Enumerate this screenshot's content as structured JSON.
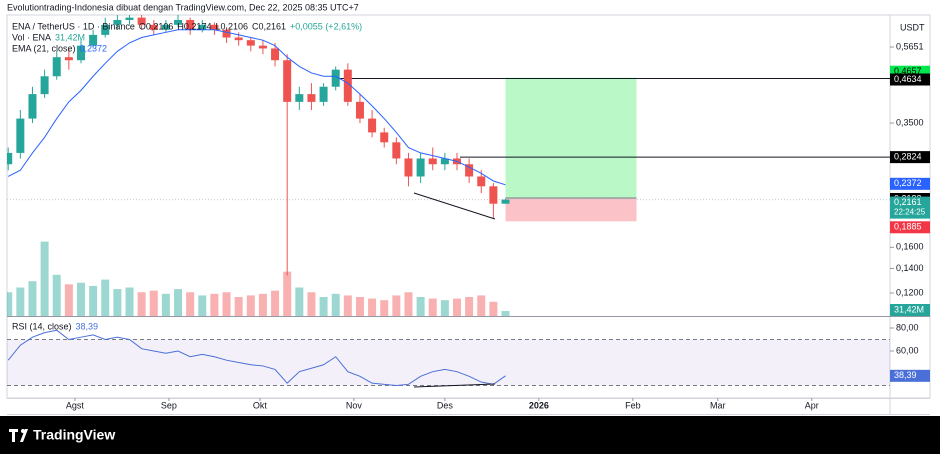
{
  "header": "Evolutiontrading-Indonesia dibuat dengan TradingView.com, Dec 22, 2025 08:35 UTC+7",
  "chart_data": {
    "type": "candlestick",
    "symbol": "ENA / TetherUS · 1D · Binance",
    "ohlc_labels": [
      "O0,2106",
      "H0,2174",
      "L0,2106",
      "C0,2161"
    ],
    "change_label": "+0,0055 (+2,61%)",
    "currency": "USDT",
    "log_scale": true,
    "categories": [
      null,
      null,
      null,
      null,
      null,
      null,
      null,
      null,
      null,
      null,
      null,
      null,
      null,
      null,
      null,
      null,
      null,
      null,
      null,
      null,
      null,
      null,
      null,
      null,
      null,
      null,
      null,
      null,
      null,
      null,
      null,
      null,
      null,
      null,
      null,
      null,
      null,
      null,
      null,
      null,
      null,
      null
    ],
    "open": [
      0.27,
      0.29,
      0.36,
      0.42,
      0.47,
      0.53,
      0.52,
      0.57,
      0.61,
      0.65,
      0.67,
      0.68,
      0.65,
      0.63,
      0.65,
      0.67,
      0.63,
      0.65,
      0.63,
      0.6,
      0.59,
      0.57,
      0.56,
      0.52,
      0.4,
      0.42,
      0.4,
      0.44,
      0.49,
      0.4,
      0.36,
      0.33,
      0.31,
      0.28,
      0.25,
      0.28,
      0.27,
      0.28,
      0.27,
      0.25,
      0.235,
      0.2106
    ],
    "high": [
      0.3,
      0.38,
      0.44,
      0.49,
      0.55,
      0.56,
      0.59,
      0.63,
      0.68,
      0.7,
      0.72,
      0.7,
      0.67,
      0.67,
      0.7,
      0.68,
      0.67,
      0.66,
      0.64,
      0.62,
      0.6,
      0.59,
      0.58,
      0.54,
      0.44,
      0.45,
      0.45,
      0.5,
      0.51,
      0.42,
      0.38,
      0.34,
      0.32,
      0.29,
      0.29,
      0.3,
      0.29,
      0.29,
      0.28,
      0.26,
      0.24,
      0.2174
    ],
    "low": [
      0.26,
      0.28,
      0.35,
      0.41,
      0.46,
      0.49,
      0.51,
      0.56,
      0.6,
      0.63,
      0.65,
      0.63,
      0.61,
      0.62,
      0.64,
      0.61,
      0.62,
      0.61,
      0.58,
      0.57,
      0.55,
      0.54,
      0.5,
      0.134,
      0.38,
      0.38,
      0.39,
      0.43,
      0.39,
      0.35,
      0.32,
      0.3,
      0.27,
      0.235,
      0.24,
      0.26,
      0.26,
      0.26,
      0.24,
      0.225,
      0.192,
      0.2106
    ],
    "close": [
      0.29,
      0.36,
      0.42,
      0.47,
      0.53,
      0.52,
      0.57,
      0.61,
      0.65,
      0.67,
      0.68,
      0.65,
      0.63,
      0.65,
      0.67,
      0.63,
      0.65,
      0.63,
      0.6,
      0.59,
      0.57,
      0.56,
      0.52,
      0.4,
      0.42,
      0.4,
      0.44,
      0.49,
      0.4,
      0.36,
      0.33,
      0.31,
      0.28,
      0.25,
      0.28,
      0.27,
      0.28,
      0.27,
      0.25,
      0.235,
      0.2106,
      0.2161
    ],
    "last_label": "0,2161",
    "countdown": "22:24:25",
    "colors": {
      "up": "#26a69a",
      "down": "#ef5350"
    },
    "ylim": [
      0.1038,
      0.6914
    ],
    "yticks": [
      {
        "value": 0.5651,
        "label": "0,5651"
      },
      {
        "value": 0.35,
        "label": "0,3500"
      },
      {
        "value": 0.16,
        "label": "0,1600"
      },
      {
        "value": 0.14,
        "label": "0,1400"
      },
      {
        "value": 0.12,
        "label": "0,1200"
      }
    ],
    "xlim": [
      -0.1,
      72.7
    ],
    "xticks": [
      {
        "value": 5.5,
        "label": "Agst"
      },
      {
        "value": 13.25,
        "label": "Sep"
      },
      {
        "value": 20.75,
        "label": "Okt"
      },
      {
        "value": 28.5,
        "label": "Nov"
      },
      {
        "value": 36,
        "label": "Des"
      },
      {
        "value": 43.75,
        "label": "2026"
      },
      {
        "value": 51.5,
        "label": "Feb"
      },
      {
        "value": 58.5,
        "label": "Mar"
      },
      {
        "value": 66.25,
        "label": "Apr"
      }
    ],
    "volume": {
      "name": "Vol · ENA",
      "ylim": [
        0,
        600
      ],
      "values": [
        150,
        180,
        220,
        470,
        260,
        200,
        210,
        190,
        230,
        170,
        180,
        150,
        160,
        140,
        170,
        150,
        130,
        140,
        150,
        120,
        130,
        140,
        160,
        280,
        180,
        150,
        120,
        140,
        130,
        120,
        110,
        100,
        130,
        150,
        120,
        110,
        100,
        110,
        120,
        130,
        90,
        31.42
      ],
      "last_label": "31,42M"
    },
    "ema": {
      "name": "EMA (21, close)",
      "color": "#2962ff",
      "values": [
        0.25,
        0.26,
        0.29,
        0.32,
        0.36,
        0.4,
        0.43,
        0.47,
        0.51,
        0.55,
        0.58,
        0.6,
        0.61,
        0.62,
        0.63,
        0.63,
        0.63,
        0.63,
        0.62,
        0.61,
        0.6,
        0.59,
        0.57,
        0.53,
        0.5,
        0.48,
        0.47,
        0.47,
        0.45,
        0.42,
        0.39,
        0.36,
        0.33,
        0.3,
        0.29,
        0.285,
        0.28,
        0.275,
        0.265,
        0.255,
        0.243,
        0.2372
      ],
      "last_label": "0,2372"
    },
    "levels": [
      {
        "value": 0.4634,
        "label": "0,4634"
      },
      {
        "value": 0.2824,
        "label": "0,2824"
      }
    ],
    "position": {
      "target": {
        "value": 0.4657,
        "label": "0,4657"
      },
      "entry": {
        "value": 0.2183,
        "label": "0,2183"
      },
      "stop": {
        "value": 0.1885,
        "label": "0,1885"
      }
    }
  },
  "rsi": {
    "type": "line",
    "name": "RSI (14, close)",
    "color": "#4a6fd8",
    "values": [
      52,
      65,
      72,
      76,
      78,
      70,
      72,
      74,
      70,
      72,
      70,
      62,
      60,
      58,
      60,
      55,
      57,
      55,
      52,
      50,
      48,
      47,
      44,
      32,
      42,
      45,
      48,
      55,
      42,
      38,
      32,
      31,
      30,
      31,
      38,
      42,
      44,
      42,
      38,
      33,
      31,
      38.39
    ],
    "last_label": "38,39",
    "ylim": [
      19.1,
      88.7
    ],
    "yticks": [
      {
        "value": 80,
        "label": "80,00"
      },
      {
        "value": 60,
        "label": "60,00"
      }
    ],
    "bands": [
      70,
      30
    ]
  },
  "footer": "TradingView"
}
